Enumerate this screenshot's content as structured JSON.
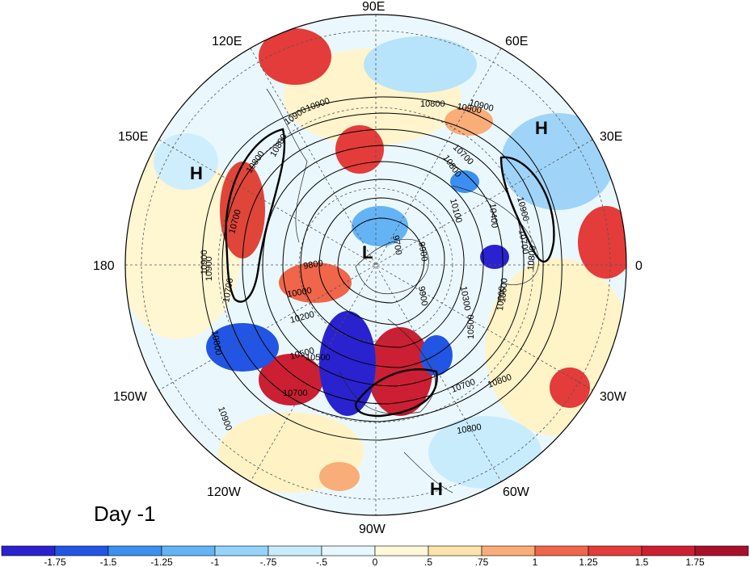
{
  "panel_label": "Day -1",
  "longitude_labels": [
    "90E",
    "60E",
    "30E",
    "0",
    "30W",
    "60W",
    "90W",
    "120W",
    "150W",
    "180",
    "150E",
    "120E"
  ],
  "pressure_labels": [
    {
      "text": "H",
      "name": "high-pacific-west"
    },
    {
      "text": "H",
      "name": "high-europe"
    },
    {
      "text": "H",
      "name": "high-atlantic-south"
    },
    {
      "text": "L",
      "name": "low-polar"
    }
  ],
  "contour_labels": [
    "10900",
    "10800",
    "10900",
    "10700",
    "10800",
    "10900",
    "10700",
    "10900",
    "10700",
    "10800",
    "10900",
    "10600",
    "10800",
    "10800",
    "10800",
    "10800",
    "10500",
    "10200",
    "10000",
    "9800",
    "9900",
    "9700",
    "9900",
    "10100",
    "10300",
    "10500",
    "10400",
    "10600",
    "10700",
    "10700",
    "10800",
    "10900",
    "10500",
    "10700",
    "10900",
    "10900"
  ],
  "colorbar": {
    "tick_labels": [
      "-1.75",
      "-1.5",
      "-1.25",
      "-1",
      "-.75",
      "-.5",
      "0",
      ".5",
      ".75",
      "1",
      "1.25",
      "1.5",
      "1.75"
    ],
    "colors": [
      "#2a22cf",
      "#2255e4",
      "#3b8ff0",
      "#64b4f5",
      "#94d4fa",
      "#c6ecfd",
      "#e6f7fe",
      "#fff9d9",
      "#fde4aa",
      "#f9ad78",
      "#f0664a",
      "#e33c3a",
      "#cc1f33",
      "#a8102a"
    ]
  }
}
